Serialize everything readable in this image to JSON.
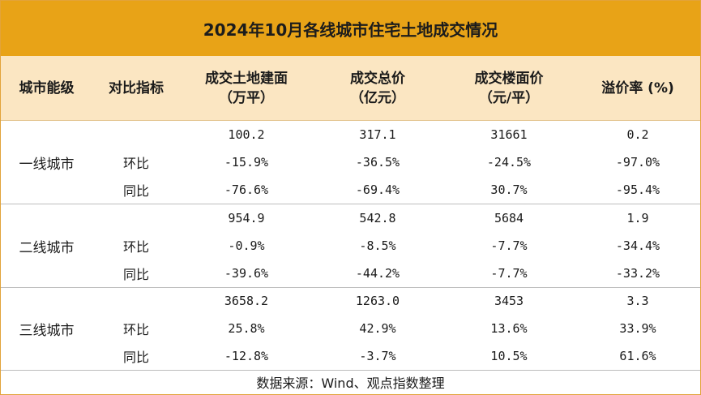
{
  "title": "2024年10月各线城市住宅土地成交情况",
  "headers": {
    "city_tier": "城市能级",
    "metric": "对比指标",
    "area": [
      "成交土地建面",
      "（万平）"
    ],
    "total_price": [
      "成交总价",
      "（亿元）"
    ],
    "floor_price": [
      "成交楼面价",
      "（元/平）"
    ],
    "premium": "溢价率 (%)"
  },
  "groups": [
    {
      "city": "一线城市",
      "rows": [
        {
          "metric": "",
          "area": "100.2",
          "total": "317.1",
          "price": "31661",
          "premium": "0.2"
        },
        {
          "metric": "环比",
          "area": "-15.9%",
          "total": "-36.5%",
          "price": "-24.5%",
          "premium": "-97.0%"
        },
        {
          "metric": "同比",
          "area": "-76.6%",
          "total": "-69.4%",
          "price": "30.7%",
          "premium": "-95.4%"
        }
      ]
    },
    {
      "city": "二线城市",
      "rows": [
        {
          "metric": "",
          "area": "954.9",
          "total": "542.8",
          "price": "5684",
          "premium": "1.9"
        },
        {
          "metric": "环比",
          "area": "-0.9%",
          "total": "-8.5%",
          "price": "-7.7%",
          "premium": "-34.4%"
        },
        {
          "metric": "同比",
          "area": "-39.6%",
          "total": "-44.2%",
          "price": "-7.7%",
          "premium": "-33.2%"
        }
      ]
    },
    {
      "city": "三线城市",
      "rows": [
        {
          "metric": "",
          "area": "3658.2",
          "total": "1263.0",
          "price": "3453",
          "premium": "3.3"
        },
        {
          "metric": "环比",
          "area": "25.8%",
          "total": "42.9%",
          "price": "13.6%",
          "premium": "33.9%"
        },
        {
          "metric": "同比",
          "area": "-12.8%",
          "total": "-3.7%",
          "price": "10.5%",
          "premium": "61.6%"
        }
      ]
    }
  ],
  "footer": "数据来源：Wind、观点指数整理",
  "colors": {
    "title_bg": "#e8a317",
    "header_bg": "#fbe6c2"
  }
}
